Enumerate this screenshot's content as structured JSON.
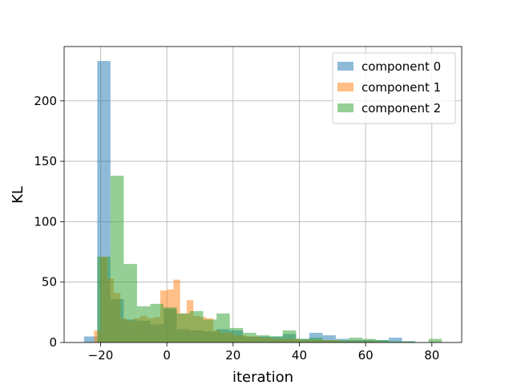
{
  "chart_data": {
    "type": "histogram",
    "xlabel": "iteration",
    "ylabel": "KL",
    "xlim": [
      -31,
      89
    ],
    "ylim": [
      0,
      245
    ],
    "x_ticks": [
      -20,
      0,
      20,
      40,
      60,
      80
    ],
    "y_ticks": [
      0,
      50,
      100,
      150,
      200
    ],
    "x_tick_labels": [
      "−20",
      "0",
      "20",
      "40",
      "60",
      "80"
    ],
    "y_tick_labels": [
      "0",
      "50",
      "100",
      "150",
      "200"
    ],
    "grid": true,
    "legend_position": "top-right",
    "alpha": 0.5,
    "series": [
      {
        "name": "component 0",
        "color": "#1f77b4",
        "bins": [
          [
            -25,
            -21,
            5
          ],
          [
            -21,
            -17,
            233
          ],
          [
            -17,
            -13,
            36
          ],
          [
            -13,
            -9,
            19
          ],
          [
            -9,
            -5,
            18
          ],
          [
            -5,
            -1,
            15
          ],
          [
            -1,
            3,
            28
          ],
          [
            3,
            7,
            11
          ],
          [
            7,
            11,
            10
          ],
          [
            11,
            15,
            9
          ],
          [
            15,
            19,
            11
          ],
          [
            19,
            23,
            10
          ],
          [
            23,
            27,
            5
          ],
          [
            27,
            31,
            5
          ],
          [
            31,
            35,
            5
          ],
          [
            35,
            39,
            7
          ],
          [
            39,
            43,
            3
          ],
          [
            43,
            47,
            8
          ],
          [
            47,
            51,
            6
          ],
          [
            51,
            55,
            3
          ],
          [
            55,
            59,
            2
          ],
          [
            59,
            63,
            2
          ],
          [
            63,
            67,
            2
          ],
          [
            67,
            71,
            4
          ],
          [
            71,
            75,
            1
          ],
          [
            75,
            79,
            0
          ]
        ]
      },
      {
        "name": "component 1",
        "color": "#ff7f0e",
        "bins": [
          [
            -22,
            -20,
            10
          ],
          [
            -20,
            -18,
            71
          ],
          [
            -18,
            -16,
            53
          ],
          [
            -16,
            -14,
            41
          ],
          [
            -14,
            -12,
            20
          ],
          [
            -12,
            -10,
            18
          ],
          [
            -10,
            -8,
            20
          ],
          [
            -8,
            -6,
            22
          ],
          [
            -6,
            -4,
            20
          ],
          [
            -4,
            -2,
            21
          ],
          [
            -2,
            0,
            43
          ],
          [
            0,
            2,
            44
          ],
          [
            2,
            4,
            52
          ],
          [
            4,
            6,
            24
          ],
          [
            6,
            8,
            35
          ],
          [
            8,
            10,
            22
          ],
          [
            10,
            12,
            21
          ],
          [
            12,
            14,
            20
          ],
          [
            14,
            16,
            10
          ],
          [
            16,
            18,
            8
          ],
          [
            18,
            20,
            8
          ],
          [
            20,
            24,
            6
          ],
          [
            24,
            28,
            5
          ],
          [
            28,
            32,
            4
          ],
          [
            32,
            36,
            3
          ],
          [
            36,
            40,
            3
          ],
          [
            40,
            44,
            2
          ],
          [
            44,
            48,
            2
          ],
          [
            48,
            52,
            2
          ],
          [
            52,
            56,
            1
          ],
          [
            56,
            60,
            1
          ],
          [
            60,
            64,
            1
          ]
        ]
      },
      {
        "name": "component 2",
        "color": "#2ca02c",
        "bins": [
          [
            -21,
            -17,
            71
          ],
          [
            -17,
            -13,
            138
          ],
          [
            -13,
            -9,
            65
          ],
          [
            -9,
            -5,
            30
          ],
          [
            -5,
            -1,
            32
          ],
          [
            -1,
            3,
            29
          ],
          [
            3,
            7,
            24
          ],
          [
            7,
            11,
            26
          ],
          [
            11,
            15,
            19
          ],
          [
            15,
            19,
            24
          ],
          [
            19,
            23,
            12
          ],
          [
            23,
            27,
            8
          ],
          [
            27,
            31,
            6
          ],
          [
            31,
            35,
            5
          ],
          [
            35,
            39,
            10
          ],
          [
            39,
            43,
            3
          ],
          [
            43,
            47,
            4
          ],
          [
            47,
            51,
            2
          ],
          [
            51,
            55,
            2
          ],
          [
            55,
            59,
            4
          ],
          [
            59,
            63,
            3
          ],
          [
            63,
            67,
            2
          ],
          [
            67,
            71,
            1
          ],
          [
            71,
            75,
            1
          ],
          [
            75,
            79,
            0
          ],
          [
            79,
            83,
            3
          ]
        ]
      }
    ]
  }
}
